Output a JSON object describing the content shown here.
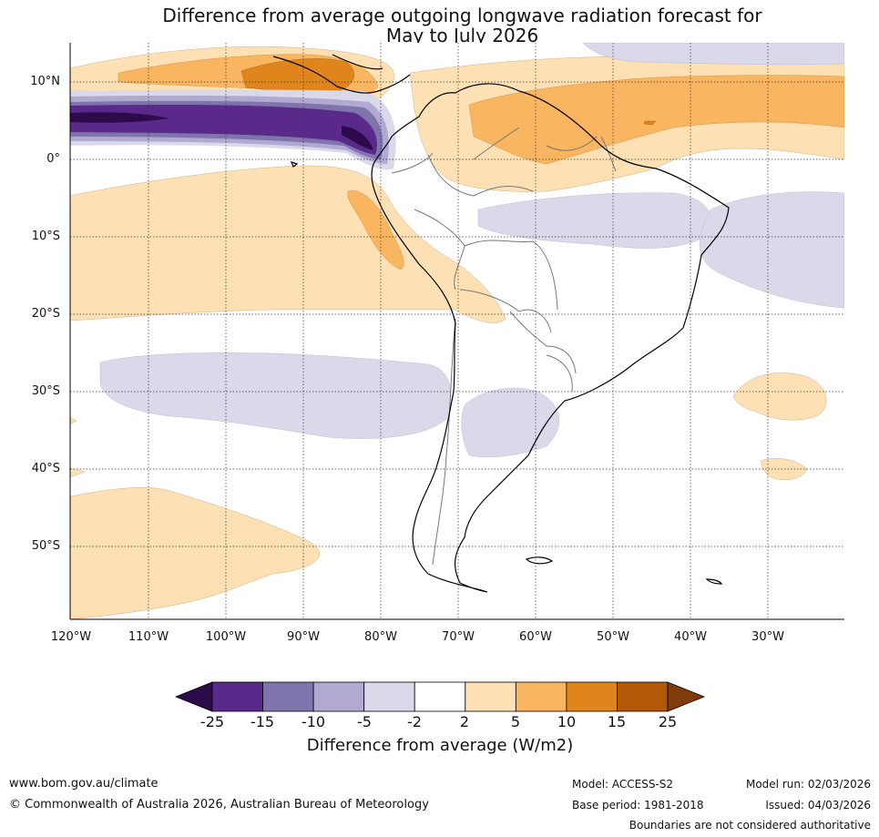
{
  "title_line1": "Difference from average outgoing longwave radiation forecast for",
  "title_line2": "May to July 2026",
  "map": {
    "latitude_labels": [
      "10°N",
      "0°",
      "10°S",
      "20°S",
      "30°S",
      "40°S",
      "50°S"
    ],
    "longitude_labels": [
      "120°W",
      "110°W",
      "100°W",
      "90°W",
      "80°W",
      "70°W",
      "60°W",
      "50°W",
      "40°W",
      "30°W"
    ]
  },
  "colorbar": {
    "title": "Difference from average (W/m2)",
    "tick_labels": [
      "-25",
      "-15",
      "-10",
      "-5",
      "-2",
      "2",
      "5",
      "10",
      "15",
      "25"
    ],
    "colors": [
      "#2d0a4a",
      "#5a2a8a",
      "#8074ad",
      "#b1a9d2",
      "#d9d9ea",
      "#ffffff",
      "#fde0b3",
      "#f9b560",
      "#e0841c",
      "#b35806",
      "#7f3b08"
    ]
  },
  "footer": {
    "website": "www.bom.gov.au/climate",
    "copyright": "© Commonwealth of Australia 2026, Australian Bureau of Meteorology",
    "model": "Model: ACCESS-S2",
    "base_period": "Base period: 1981-2018",
    "model_run": "Model run: 02/03/2026",
    "issued": "Issued: 04/03/2026",
    "disclaimer": "Boundaries are not considered authoritative"
  }
}
